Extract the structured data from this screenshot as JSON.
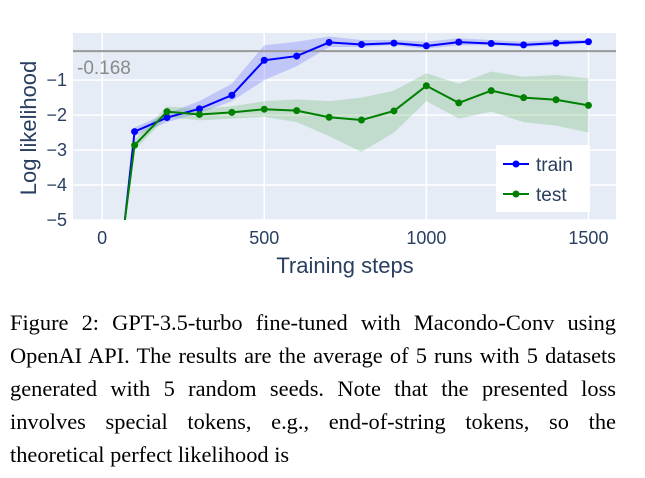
{
  "chart_data": {
    "type": "line",
    "xlabel": "Training steps",
    "ylabel": "Log likelihood",
    "xlim": [
      -90,
      1585
    ],
    "ylim": [
      -5.0,
      0.35
    ],
    "xticks": [
      0,
      500,
      1000,
      1500
    ],
    "xtick_labels": [
      "0",
      "500",
      "1000",
      "1500"
    ],
    "yticks": [
      -1,
      -2,
      -3,
      -4,
      -5
    ],
    "ytick_labels": [
      "−1",
      "−2",
      "−3",
      "−4",
      "−5"
    ],
    "grid": true,
    "legend_position": "bottom-right",
    "reference_line": {
      "y": -0.168,
      "label": "-0.168",
      "color": "#999999"
    },
    "series": [
      {
        "name": "train",
        "color": "#0000ff",
        "band_color": "#6666ff",
        "x": [
          70,
          100,
          200,
          300,
          400,
          500,
          600,
          700,
          800,
          900,
          1000,
          1100,
          1200,
          1300,
          1400,
          1500
        ],
        "y": [
          -5.0,
          -2.47,
          -2.07,
          -1.82,
          -1.43,
          -0.43,
          -0.31,
          0.08,
          0.02,
          0.06,
          -0.02,
          0.09,
          0.05,
          0.01,
          0.06,
          0.1
        ],
        "lower": [
          -5.0,
          -2.6,
          -2.2,
          -1.95,
          -1.6,
          -1.0,
          -0.6,
          -0.05,
          -0.05,
          0.0,
          -0.1,
          0.0,
          0.0,
          -0.05,
          0.0,
          0.05
        ],
        "upper": [
          -5.0,
          -2.35,
          -1.95,
          -1.6,
          -1.1,
          0.0,
          0.1,
          0.25,
          0.15,
          0.15,
          0.1,
          0.2,
          0.15,
          0.1,
          0.15,
          0.15
        ]
      },
      {
        "name": "test",
        "color": "#008000",
        "band_color": "#66b266",
        "x": [
          70,
          100,
          200,
          300,
          400,
          500,
          600,
          700,
          800,
          900,
          1000,
          1100,
          1200,
          1300,
          1400,
          1500
        ],
        "y": [
          -5.0,
          -2.86,
          -1.9,
          -1.98,
          -1.92,
          -1.83,
          -1.87,
          -2.06,
          -2.14,
          -1.88,
          -1.16,
          -1.65,
          -1.3,
          -1.5,
          -1.56,
          -1.72
        ],
        "lower": [
          -5.0,
          -3.0,
          -2.05,
          -2.15,
          -2.1,
          -2.05,
          -2.2,
          -2.6,
          -3.05,
          -2.5,
          -1.6,
          -2.1,
          -1.9,
          -2.2,
          -2.3,
          -2.5
        ],
        "upper": [
          -5.0,
          -2.7,
          -1.75,
          -1.82,
          -1.75,
          -1.6,
          -1.55,
          -1.6,
          -1.5,
          -1.3,
          -0.8,
          -1.1,
          -0.75,
          -0.9,
          -0.85,
          -0.95
        ]
      }
    ]
  },
  "caption": {
    "text": "Figure 2: GPT-3.5-turbo fine-tuned with Macondo-Conv using OpenAI API. The results are the average of 5 runs with 5 datasets generated with 5 random seeds. Note that the presented loss involves special tokens, e.g., end-of-string tokens, so the theoretical perfect likelihood is"
  }
}
